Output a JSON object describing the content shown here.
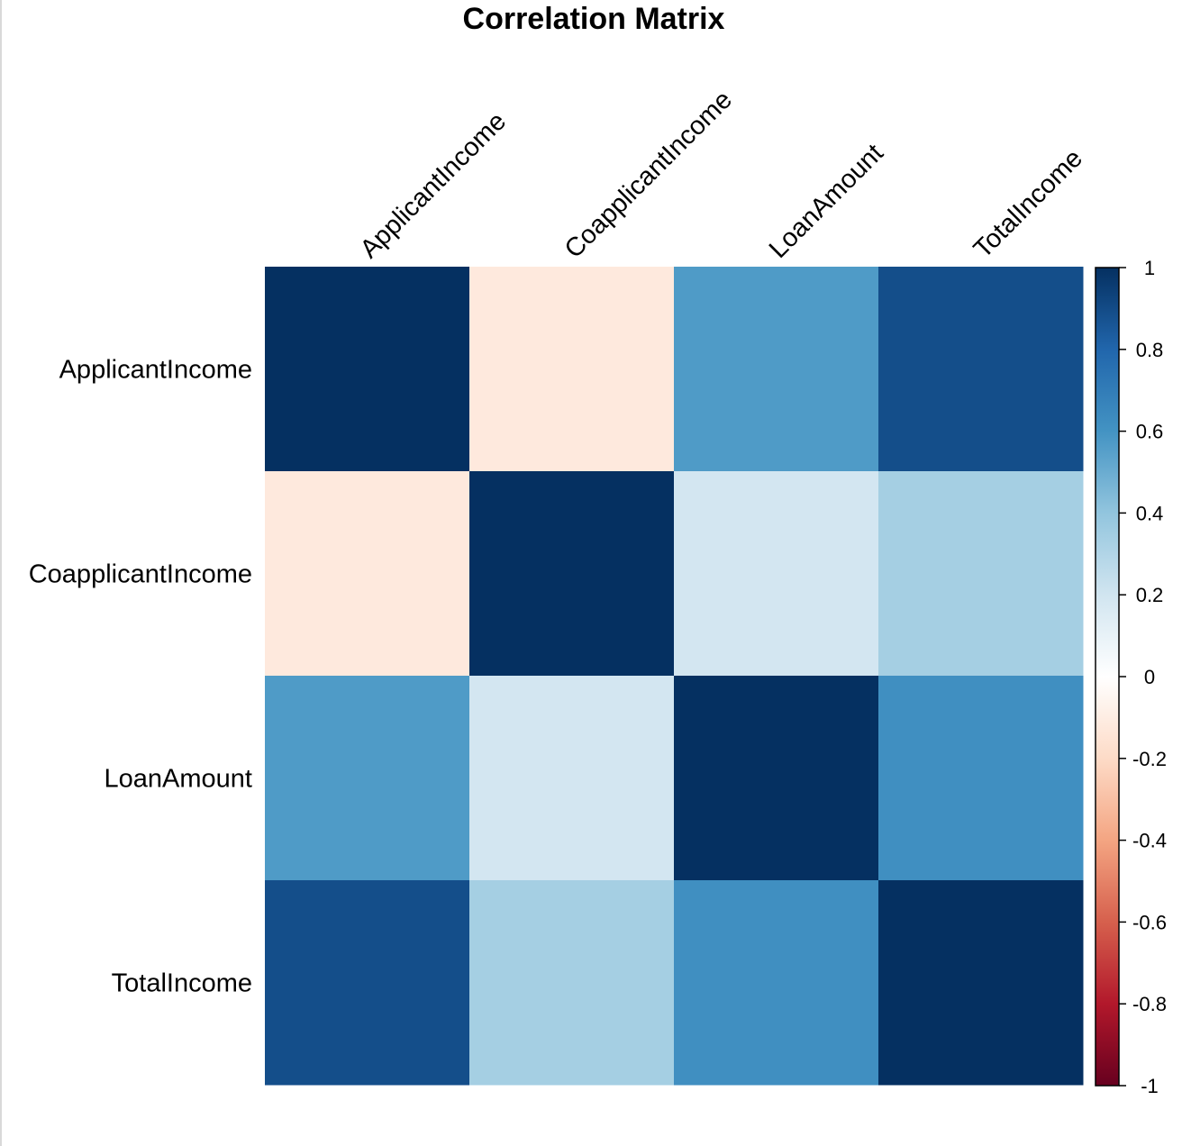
{
  "chart_data": {
    "type": "heatmap",
    "title": "Correlation Matrix",
    "row_labels": [
      "ApplicantIncome",
      "CoapplicantIncome",
      "LoanAmount",
      "TotalIncome"
    ],
    "col_labels": [
      "ApplicantIncome",
      "CoapplicantIncome",
      "LoanAmount",
      "TotalIncome"
    ],
    "values": [
      [
        1.0,
        -0.12,
        0.57,
        0.89
      ],
      [
        -0.12,
        1.0,
        0.19,
        0.34
      ],
      [
        0.57,
        0.19,
        1.0,
        0.62
      ],
      [
        0.89,
        0.34,
        0.62,
        1.0
      ]
    ],
    "colorbar": {
      "range": [
        -1,
        1
      ],
      "ticks": [
        "1",
        "0.8",
        "0.6",
        "0.4",
        "0.2",
        "0",
        "-0.2",
        "-0.4",
        "-0.6",
        "-0.8",
        "-1"
      ],
      "tick_values": [
        1,
        0.8,
        0.6,
        0.4,
        0.2,
        0,
        -0.2,
        -0.4,
        -0.6,
        -0.8,
        -1
      ],
      "placement": "right"
    },
    "colorscale": [
      {
        "v": -1.0,
        "c": "#67001f"
      },
      {
        "v": -0.8,
        "c": "#b2182b"
      },
      {
        "v": -0.6,
        "c": "#d6604d"
      },
      {
        "v": -0.4,
        "c": "#f4a582"
      },
      {
        "v": -0.2,
        "c": "#fddbc7"
      },
      {
        "v": 0.0,
        "c": "#ffffff"
      },
      {
        "v": 0.2,
        "c": "#d1e5f0"
      },
      {
        "v": 0.4,
        "c": "#92c5de"
      },
      {
        "v": 0.6,
        "c": "#4393c3"
      },
      {
        "v": 0.8,
        "c": "#2166ac"
      },
      {
        "v": 1.0,
        "c": "#053061"
      }
    ]
  }
}
